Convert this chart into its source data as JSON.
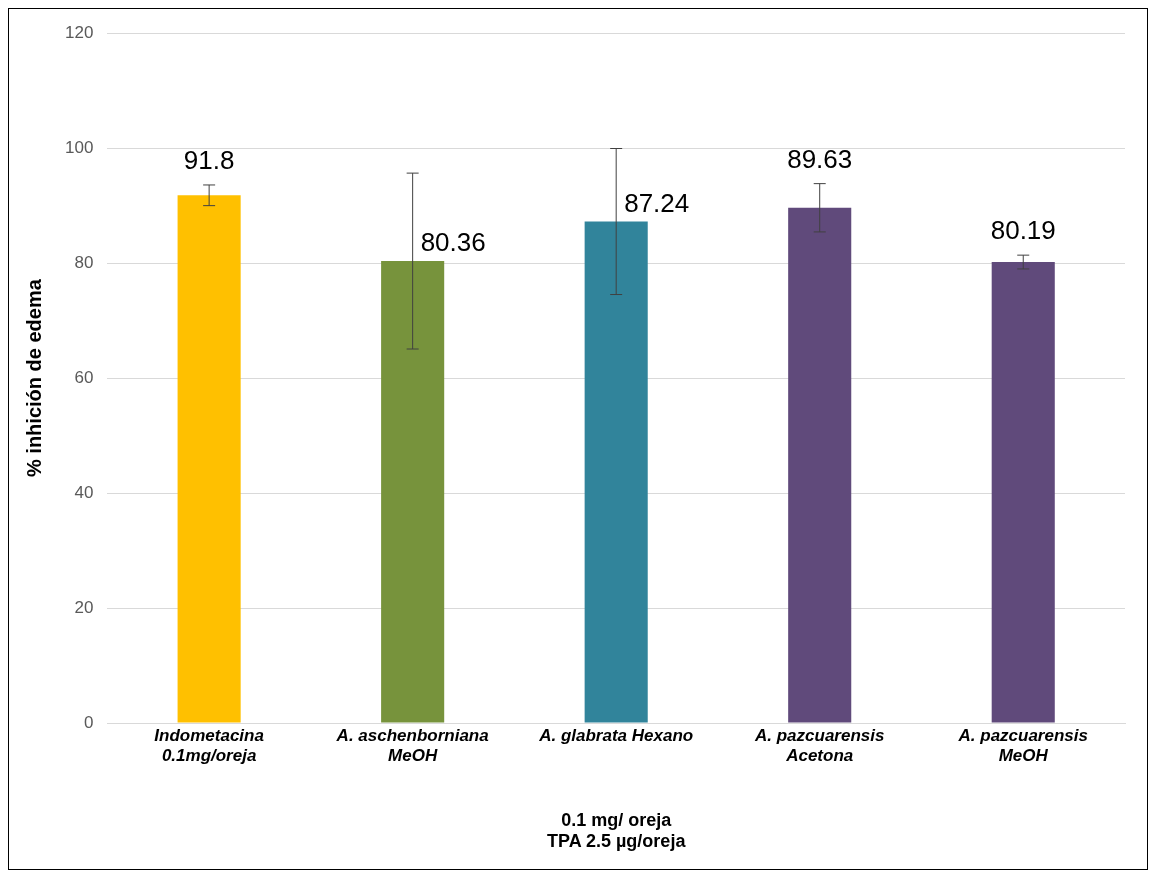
{
  "chart_data": {
    "type": "bar",
    "xlabel": "0.1 mg/ oreja\nTPA 2.5 µg/oreja",
    "ylabel": "% inhición de edema",
    "categories": [
      "Indometacina\n0.1mg/oreja",
      "A. aschenborniana\nMeOH",
      "A. glabrata Hexano",
      "A. pazcuarensis\nAcetona",
      "A. pazcuarensis\nMeOH"
    ],
    "values": [
      91.8,
      80.36,
      87.24,
      89.63,
      80.19
    ],
    "colors": [
      "#ffc000",
      "#77933c",
      "#31849b",
      "#604a7b",
      "#604a7b"
    ],
    "errors": [
      1.8,
      15.3,
      12.7,
      4.2,
      1.2
    ],
    "data_labels": true,
    "ylim": [
      0,
      120
    ],
    "yticks": [
      0,
      20,
      40,
      60,
      80,
      100,
      120
    ],
    "grid": "y",
    "legend": false
  }
}
